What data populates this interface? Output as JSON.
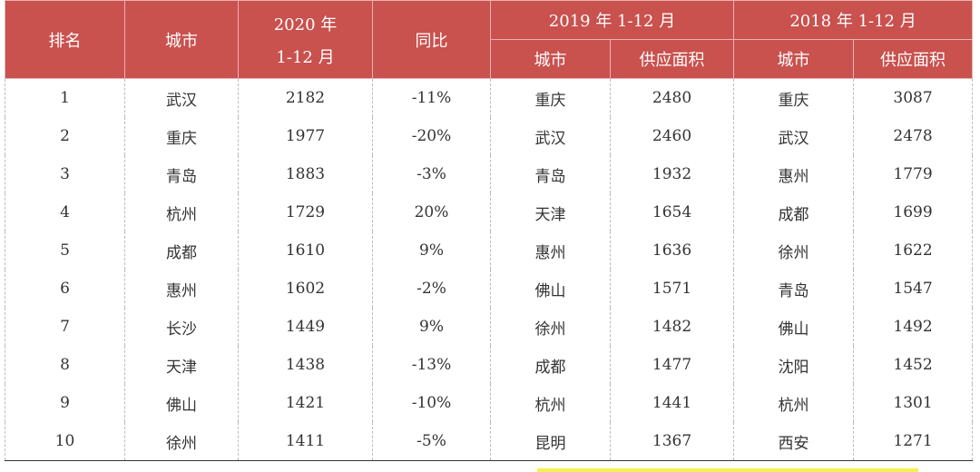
{
  "header": {
    "rank": "排名",
    "city": "城市",
    "y2020": [
      "2020 年",
      "1-12 月"
    ],
    "yoy": "同比",
    "y2019": "2019 年 1-12 月",
    "y2018": "2018 年 1-12 月",
    "sub": [
      "城市",
      "供应面积",
      "城市",
      "供应面积"
    ]
  },
  "table": {
    "rows": [
      [
        1,
        "武汉",
        2182,
        "-11%",
        "重庆",
        2480,
        "重庆",
        3087
      ],
      [
        2,
        "重庆",
        1977,
        "-20%",
        "武汉",
        2460,
        "武汉",
        2478
      ],
      [
        3,
        "青岛",
        1883,
        "-3%",
        "青岛",
        1932,
        "惠州",
        1779
      ],
      [
        4,
        "杭州",
        1729,
        "20%",
        "天津",
        1654,
        "成都",
        1699
      ],
      [
        5,
        "成都",
        1610,
        "9%",
        "惠州",
        1636,
        "徐州",
        1622
      ],
      [
        6,
        "惠州",
        1602,
        "-2%",
        "佛山",
        1571,
        "青岛",
        1547
      ],
      [
        7,
        "长沙",
        1449,
        "9%",
        "徐州",
        1482,
        "佛山",
        1492
      ],
      [
        8,
        "天津",
        1438,
        "-13%",
        "成都",
        1477,
        "沈阳",
        1452
      ],
      [
        9,
        "佛山",
        1421,
        "-10%",
        "杭州",
        1441,
        "杭州",
        1301
      ],
      [
        10,
        "徐州",
        1411,
        "-5%",
        "昆明",
        1367,
        "西安",
        1271
      ]
    ]
  }
}
